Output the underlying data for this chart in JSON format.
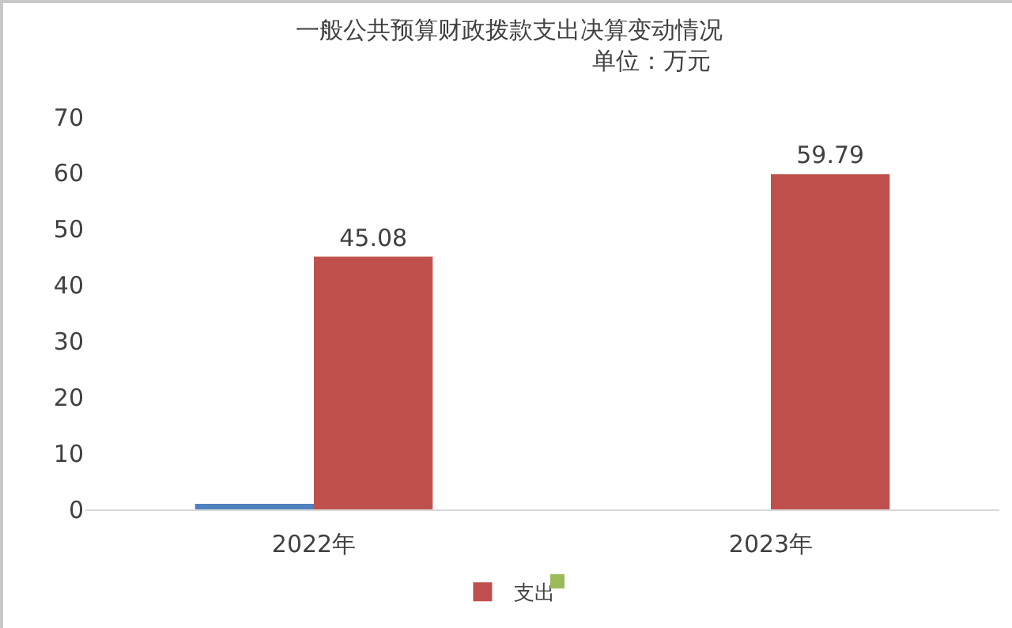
{
  "chart_data": {
    "type": "bar",
    "title": "一般公共预算财政拨款支出决算变动情况",
    "subtitle": "单位：万元",
    "categories": [
      "2022年",
      "2023年"
    ],
    "series": [
      {
        "color": "#4f81bd",
        "values": [
          1,
          0
        ]
      },
      {
        "name": "支出",
        "color": "#c0504d",
        "values": [
          45.08,
          59.79
        ],
        "value_labels": [
          "45.08",
          "59.79"
        ]
      }
    ],
    "ylim": [
      0,
      70
    ],
    "yticks": [
      0,
      10,
      20,
      30,
      40,
      50,
      60,
      70
    ],
    "grid": false,
    "legend": "bottom"
  }
}
